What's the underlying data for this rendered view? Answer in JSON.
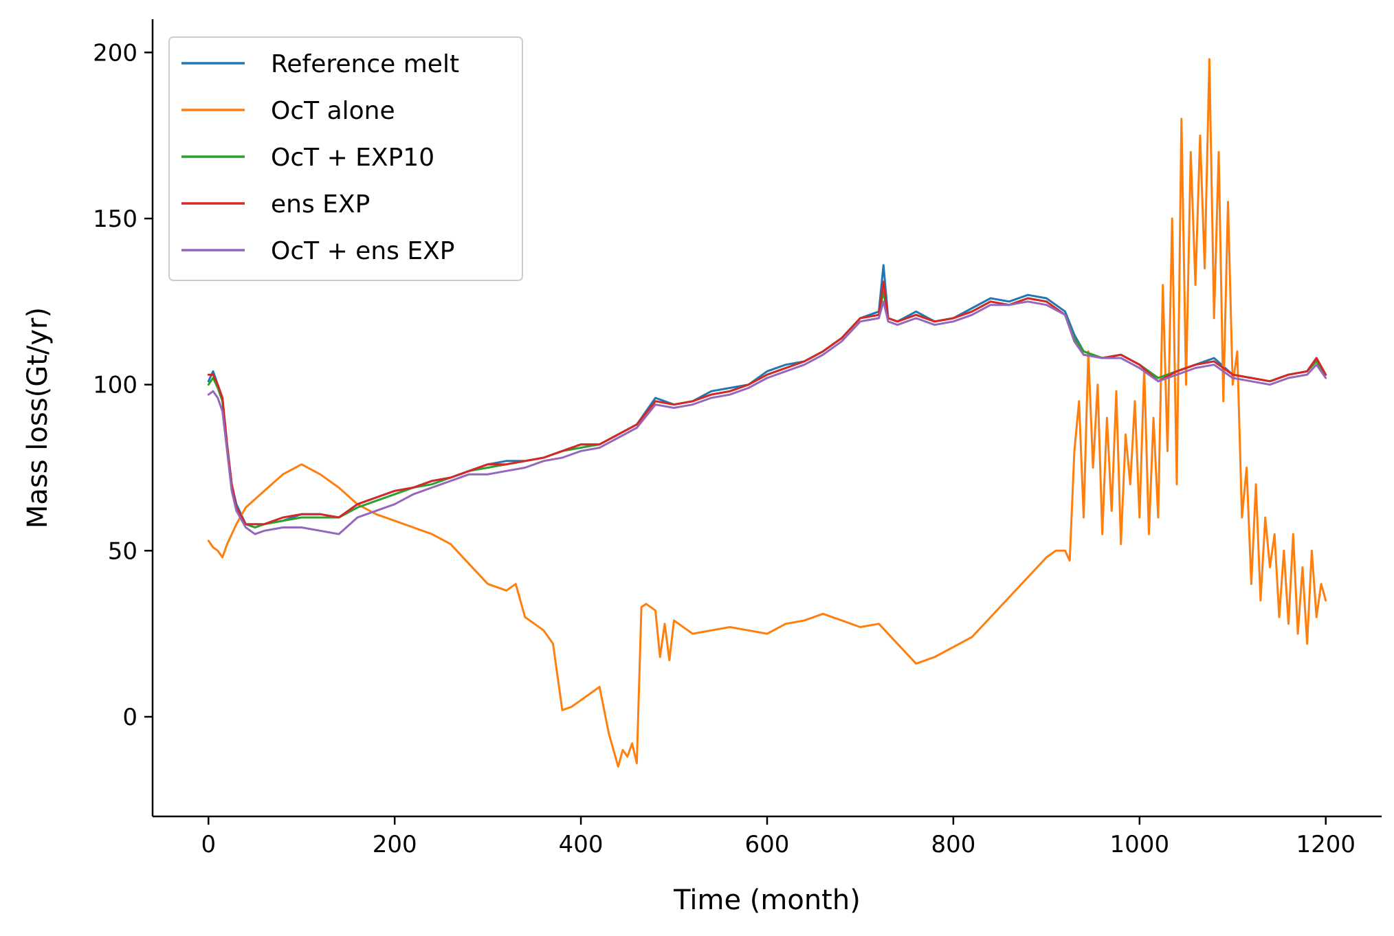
{
  "chart_data": {
    "type": "line",
    "title": "",
    "xlabel": "Time (month)",
    "ylabel": "Mass loss(Gt/yr)",
    "xlim": [
      -60,
      1260
    ],
    "ylim": [
      -30,
      210
    ],
    "xticks": [
      0,
      200,
      400,
      600,
      800,
      1000,
      1200
    ],
    "yticks": [
      0,
      50,
      100,
      150,
      200
    ],
    "grid": false,
    "legend_position": "top-left",
    "series": [
      {
        "name": "Reference melt",
        "color": "#1f77b4",
        "x": [
          0,
          5,
          10,
          15,
          20,
          25,
          30,
          40,
          50,
          60,
          80,
          100,
          120,
          140,
          160,
          180,
          200,
          220,
          240,
          260,
          280,
          300,
          320,
          340,
          360,
          380,
          400,
          420,
          440,
          460,
          480,
          500,
          520,
          540,
          560,
          580,
          600,
          620,
          640,
          660,
          680,
          700,
          720,
          725,
          730,
          740,
          760,
          780,
          800,
          820,
          840,
          860,
          880,
          900,
          920,
          930,
          940,
          960,
          980,
          1000,
          1020,
          1040,
          1060,
          1080,
          1100,
          1120,
          1140,
          1160,
          1180,
          1190,
          1200
        ],
        "y": [
          101,
          104,
          100,
          96,
          82,
          70,
          64,
          58,
          57,
          58,
          59,
          61,
          61,
          60,
          64,
          66,
          68,
          69,
          71,
          72,
          74,
          76,
          77,
          77,
          78,
          80,
          82,
          82,
          85,
          88,
          96,
          94,
          95,
          98,
          99,
          100,
          104,
          106,
          107,
          110,
          114,
          120,
          122,
          136,
          120,
          119,
          122,
          119,
          120,
          123,
          126,
          125,
          127,
          126,
          122,
          115,
          110,
          108,
          109,
          106,
          102,
          104,
          106,
          108,
          103,
          102,
          101,
          103,
          104,
          108,
          103
        ]
      },
      {
        "name": "OcT alone",
        "color": "#ff7f0e",
        "x": [
          0,
          5,
          10,
          15,
          20,
          30,
          40,
          60,
          80,
          100,
          120,
          140,
          160,
          180,
          200,
          220,
          240,
          260,
          280,
          300,
          320,
          330,
          340,
          350,
          360,
          370,
          380,
          390,
          400,
          410,
          420,
          430,
          440,
          445,
          450,
          455,
          460,
          465,
          470,
          480,
          485,
          490,
          495,
          500,
          520,
          540,
          560,
          580,
          600,
          620,
          640,
          660,
          680,
          700,
          720,
          740,
          760,
          780,
          800,
          820,
          840,
          860,
          880,
          900,
          910,
          920,
          925,
          930,
          935,
          940,
          945,
          950,
          955,
          960,
          965,
          970,
          975,
          980,
          985,
          990,
          995,
          1000,
          1005,
          1010,
          1015,
          1020,
          1025,
          1030,
          1035,
          1040,
          1045,
          1050,
          1055,
          1060,
          1065,
          1070,
          1075,
          1080,
          1085,
          1090,
          1095,
          1100,
          1105,
          1110,
          1115,
          1120,
          1125,
          1130,
          1135,
          1140,
          1145,
          1150,
          1155,
          1160,
          1165,
          1170,
          1175,
          1180,
          1185,
          1190,
          1195,
          1200
        ],
        "y": [
          53,
          51,
          50,
          48,
          52,
          58,
          63,
          68,
          73,
          76,
          73,
          69,
          64,
          61,
          59,
          57,
          55,
          52,
          46,
          40,
          38,
          40,
          30,
          28,
          26,
          22,
          2,
          3,
          5,
          7,
          9,
          -5,
          -15,
          -10,
          -12,
          -8,
          -14,
          33,
          34,
          32,
          18,
          28,
          17,
          29,
          25,
          26,
          27,
          26,
          25,
          28,
          29,
          31,
          29,
          27,
          28,
          22,
          16,
          18,
          21,
          24,
          30,
          36,
          42,
          48,
          50,
          50,
          47,
          80,
          95,
          60,
          110,
          75,
          100,
          55,
          90,
          62,
          98,
          52,
          85,
          70,
          95,
          60,
          105,
          55,
          90,
          60,
          130,
          80,
          150,
          70,
          180,
          100,
          170,
          130,
          175,
          135,
          198,
          120,
          170,
          95,
          155,
          100,
          110,
          60,
          75,
          40,
          70,
          35,
          60,
          45,
          55,
          30,
          50,
          28,
          55,
          25,
          45,
          22,
          50,
          30,
          40,
          35
        ]
      },
      {
        "name": "OcT + EXP10",
        "color": "#2ca02c",
        "x": [
          0,
          5,
          10,
          15,
          20,
          25,
          30,
          40,
          50,
          60,
          80,
          100,
          120,
          140,
          160,
          180,
          200,
          220,
          240,
          260,
          280,
          300,
          320,
          340,
          360,
          380,
          400,
          420,
          440,
          460,
          480,
          500,
          520,
          540,
          560,
          580,
          600,
          620,
          640,
          660,
          680,
          700,
          720,
          725,
          730,
          740,
          760,
          780,
          800,
          820,
          840,
          860,
          880,
          900,
          920,
          930,
          940,
          960,
          980,
          1000,
          1020,
          1040,
          1060,
          1080,
          1100,
          1120,
          1140,
          1160,
          1180,
          1190,
          1200
        ],
        "y": [
          100,
          102,
          99,
          95,
          81,
          69,
          63,
          58,
          57,
          58,
          59,
          60,
          60,
          60,
          63,
          65,
          67,
          69,
          70,
          72,
          74,
          75,
          76,
          77,
          78,
          80,
          81,
          82,
          85,
          88,
          95,
          94,
          95,
          97,
          98,
          100,
          103,
          105,
          107,
          110,
          114,
          120,
          121,
          128,
          120,
          119,
          121,
          119,
          120,
          122,
          125,
          124,
          126,
          125,
          121,
          114,
          110,
          108,
          109,
          106,
          102,
          104,
          106,
          107,
          103,
          102,
          101,
          103,
          104,
          107,
          103
        ]
      },
      {
        "name": "ens EXP",
        "color": "#d62728",
        "x": [
          0,
          5,
          10,
          15,
          20,
          25,
          30,
          40,
          50,
          60,
          80,
          100,
          120,
          140,
          160,
          180,
          200,
          220,
          240,
          260,
          280,
          300,
          320,
          340,
          360,
          380,
          400,
          420,
          440,
          460,
          480,
          500,
          520,
          540,
          560,
          580,
          600,
          620,
          640,
          660,
          680,
          700,
          720,
          725,
          730,
          740,
          760,
          780,
          800,
          820,
          840,
          860,
          880,
          900,
          920,
          930,
          940,
          960,
          980,
          1000,
          1020,
          1040,
          1060,
          1080,
          1100,
          1120,
          1140,
          1160,
          1180,
          1190,
          1200
        ],
        "y": [
          103,
          103,
          100,
          96,
          82,
          70,
          63,
          58,
          58,
          58,
          60,
          61,
          61,
          60,
          64,
          66,
          68,
          69,
          71,
          72,
          74,
          76,
          76,
          77,
          78,
          80,
          82,
          82,
          85,
          88,
          95,
          94,
          95,
          97,
          98,
          100,
          103,
          105,
          107,
          110,
          114,
          120,
          121,
          131,
          120,
          119,
          121,
          119,
          120,
          122,
          125,
          124,
          126,
          125,
          121,
          113,
          109,
          108,
          109,
          106,
          101,
          104,
          106,
          107,
          103,
          102,
          101,
          103,
          104,
          108,
          103
        ]
      },
      {
        "name": "OcT + ens EXP",
        "color": "#9467bd",
        "x": [
          0,
          5,
          10,
          15,
          20,
          25,
          30,
          40,
          50,
          60,
          80,
          100,
          120,
          140,
          160,
          180,
          200,
          220,
          240,
          260,
          280,
          300,
          320,
          340,
          360,
          380,
          400,
          420,
          440,
          460,
          480,
          500,
          520,
          540,
          560,
          580,
          600,
          620,
          640,
          660,
          680,
          700,
          720,
          725,
          730,
          740,
          760,
          780,
          800,
          820,
          840,
          860,
          880,
          900,
          920,
          930,
          940,
          960,
          980,
          1000,
          1020,
          1040,
          1060,
          1080,
          1100,
          1120,
          1140,
          1160,
          1180,
          1190,
          1200
        ],
        "y": [
          97,
          98,
          96,
          92,
          80,
          68,
          62,
          57,
          55,
          56,
          57,
          57,
          56,
          55,
          60,
          62,
          64,
          67,
          69,
          71,
          73,
          73,
          74,
          75,
          77,
          78,
          80,
          81,
          84,
          87,
          94,
          93,
          94,
          96,
          97,
          99,
          102,
          104,
          106,
          109,
          113,
          119,
          120,
          125,
          119,
          118,
          120,
          118,
          119,
          121,
          124,
          124,
          125,
          124,
          121,
          113,
          109,
          108,
          108,
          105,
          101,
          103,
          105,
          106,
          102,
          101,
          100,
          102,
          103,
          106,
          102
        ]
      }
    ]
  }
}
